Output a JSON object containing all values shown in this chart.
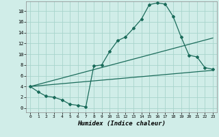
{
  "xlabel": "Humidex (Indice chaleur)",
  "bg_color": "#d0ede8",
  "grid_color": "#a8d4cc",
  "line_color": "#1a6b5a",
  "xlim": [
    -0.5,
    23.5
  ],
  "ylim": [
    -0.8,
    19.8
  ],
  "xticks": [
    0,
    1,
    2,
    3,
    4,
    5,
    6,
    7,
    8,
    9,
    10,
    11,
    12,
    13,
    14,
    15,
    16,
    17,
    18,
    19,
    20,
    21,
    22,
    23
  ],
  "yticks": [
    0,
    2,
    4,
    6,
    8,
    10,
    12,
    14,
    16,
    18
  ],
  "line1_x": [
    0,
    1,
    2,
    3,
    4,
    5,
    6,
    7,
    8,
    9,
    10,
    11,
    12,
    13,
    14,
    15,
    16,
    17,
    18,
    19,
    20,
    21,
    22,
    23
  ],
  "line1_y": [
    4.0,
    3.0,
    2.2,
    2.0,
    1.5,
    0.7,
    0.5,
    0.2,
    7.8,
    8.0,
    10.5,
    12.5,
    13.2,
    14.8,
    16.5,
    19.2,
    19.5,
    19.3,
    17.0,
    13.2,
    9.8,
    9.5,
    7.5,
    7.2
  ],
  "line2_x": [
    0,
    23
  ],
  "line2_y": [
    4.0,
    13.0
  ],
  "line3_x": [
    0,
    23
  ],
  "line3_y": [
    4.0,
    7.0
  ]
}
